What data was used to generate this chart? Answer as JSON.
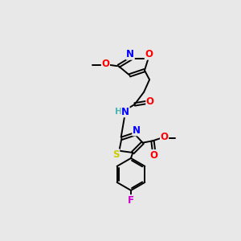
{
  "bg_color": "#e8e8e8",
  "atom_colors": {
    "N": "#0000ff",
    "O": "#ff0000",
    "S": "#cccc00",
    "F": "#cc00cc",
    "H": "#4db3b3",
    "C": "#000000"
  }
}
